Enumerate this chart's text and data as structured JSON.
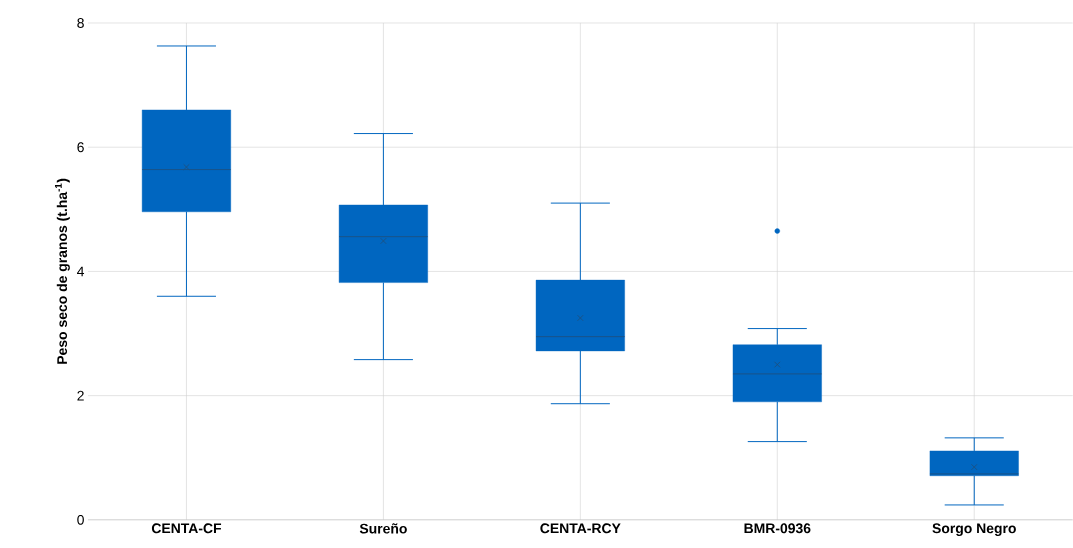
{
  "chart_data": {
    "type": "box",
    "ylabel": "Peso seco de granos (t.ha$^{-1}$)",
    "categories": [
      "CENTA-CF",
      "Sureño",
      "CENTA-RCY",
      "BMR-0936",
      "Sorgo Negro"
    ],
    "color": "#0066c0",
    "boxes": [
      {
        "low": 3.6,
        "q1": 4.96,
        "median": 5.64,
        "q3": 6.6,
        "high": 7.63,
        "mean": 5.68
      },
      {
        "low": 2.58,
        "q1": 3.82,
        "median": 4.56,
        "q3": 5.07,
        "high": 6.22,
        "mean": 4.49
      },
      {
        "low": 1.87,
        "q1": 2.72,
        "median": 2.95,
        "q3": 3.86,
        "high": 5.1,
        "mean": 3.25
      },
      {
        "low": 1.26,
        "q1": 1.9,
        "median": 2.35,
        "q3": 2.82,
        "high": 3.08,
        "mean": 2.5,
        "outliers": [
          4.65
        ]
      },
      {
        "low": 0.24,
        "q1": 0.71,
        "median": 0.74,
        "q3": 1.11,
        "high": 1.32,
        "mean": 0.85
      }
    ],
    "ylim": [
      0,
      8
    ],
    "yticks": [
      0,
      2,
      4,
      6,
      8
    ],
    "grid": true
  }
}
